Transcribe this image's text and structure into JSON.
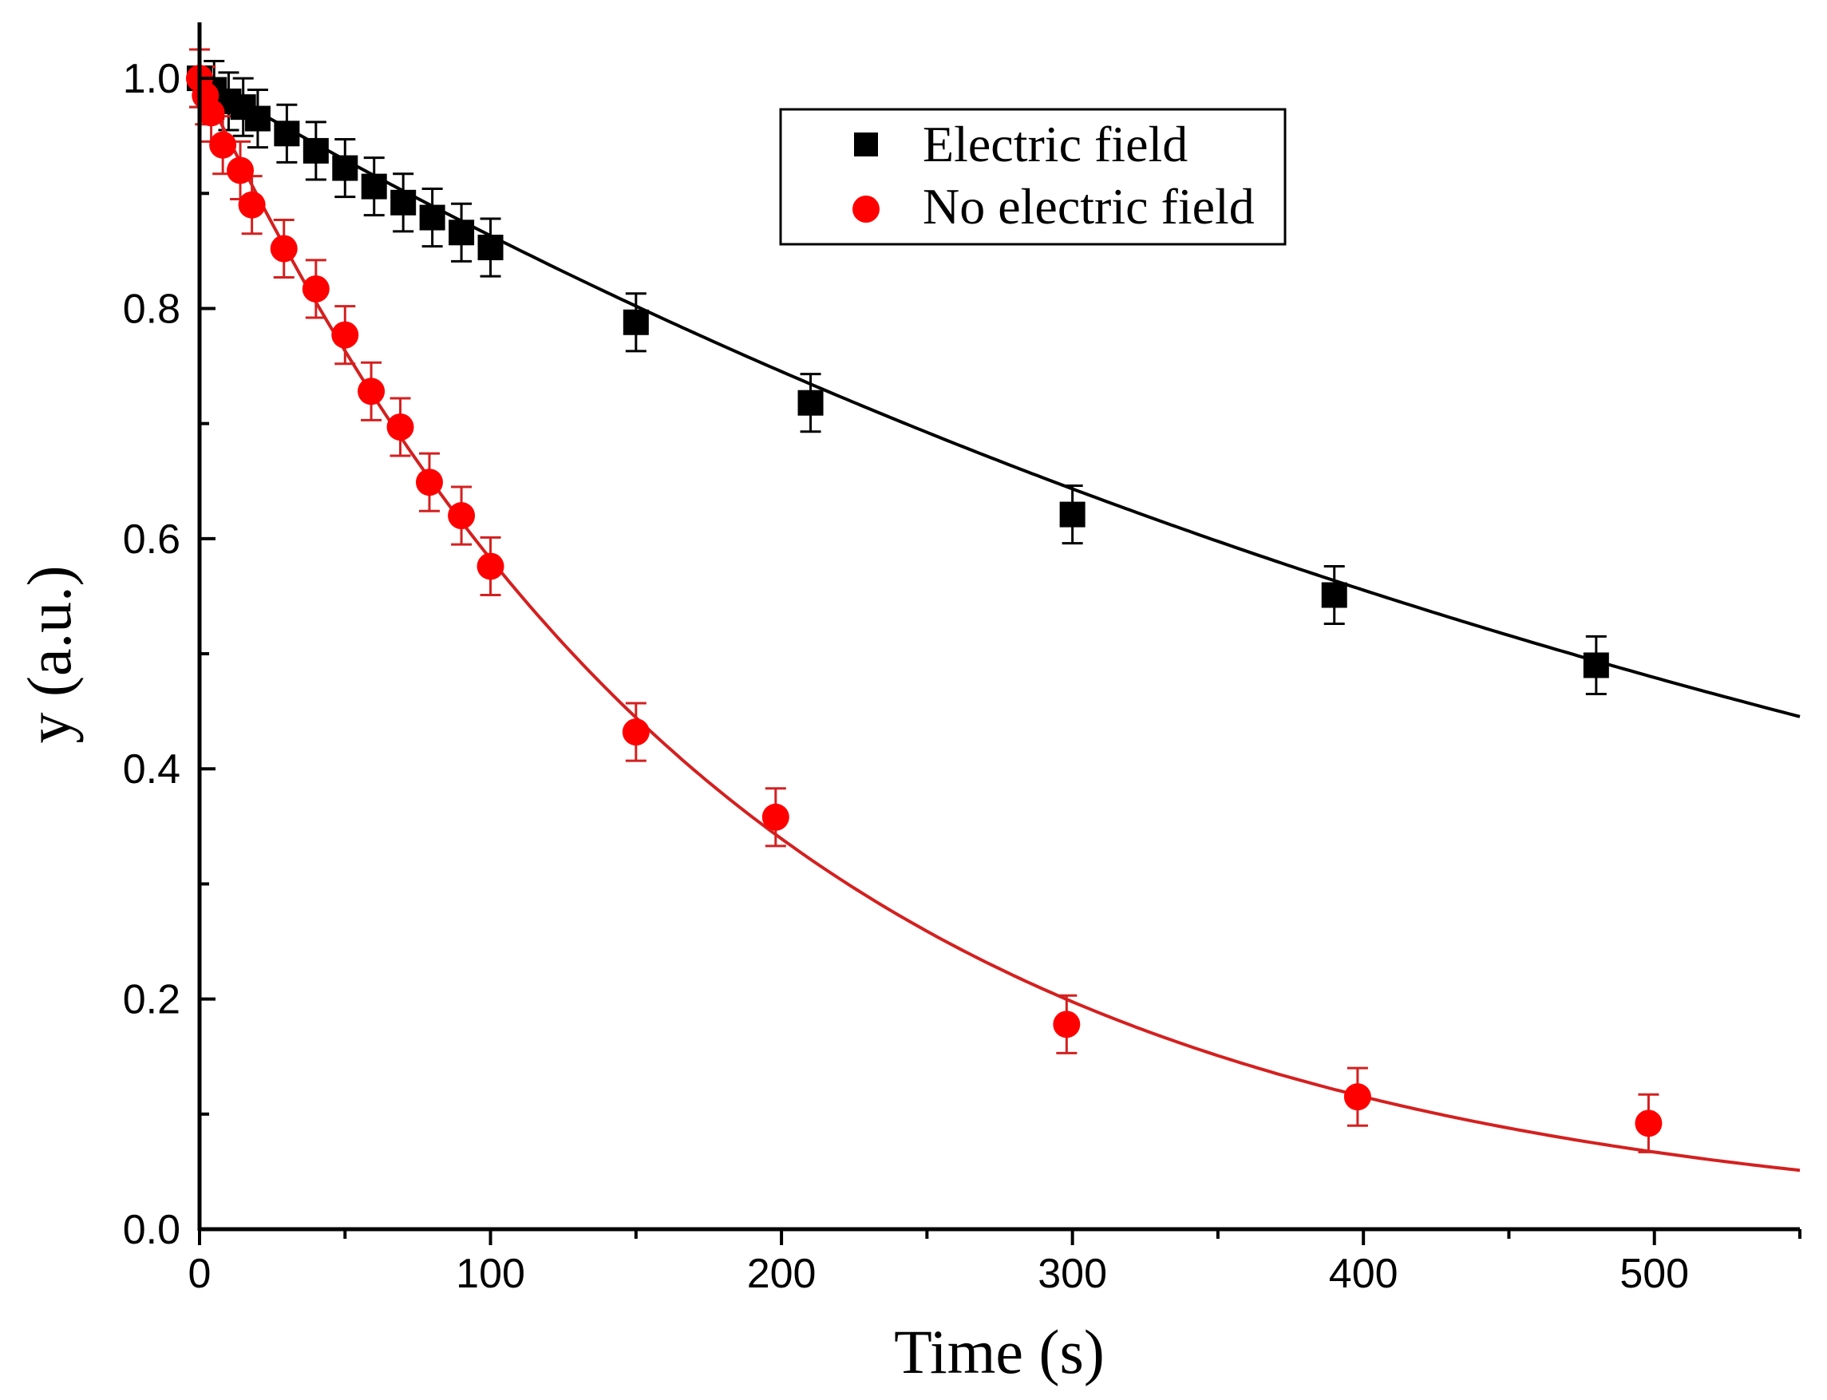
{
  "chart_data": {
    "type": "scatter",
    "title": "",
    "xlabel": "Time (s)",
    "ylabel": "y (a.u.)",
    "xlim": [
      0,
      550
    ],
    "ylim": [
      0,
      1.05
    ],
    "xticks": [
      0,
      100,
      200,
      300,
      400,
      500
    ],
    "xtick_labels": [
      "0",
      "100",
      "200",
      "300",
      "400",
      "500"
    ],
    "yticks": [
      0.0,
      0.2,
      0.4,
      0.6,
      0.8,
      1.0
    ],
    "ytick_labels": [
      "0.0",
      "0.2",
      "0.4",
      "0.6",
      "0.8",
      "1.0"
    ],
    "grid": false,
    "legend_position": "top-center",
    "series": [
      {
        "name": "Electric field",
        "marker": "square",
        "color": "#000000",
        "x": [
          0,
          5,
          10,
          15,
          20,
          30,
          40,
          50,
          60,
          70,
          80,
          90,
          100,
          150,
          210,
          300,
          390,
          480
        ],
        "y": [
          1.0,
          0.99,
          0.98,
          0.975,
          0.965,
          0.952,
          0.937,
          0.922,
          0.906,
          0.892,
          0.879,
          0.866,
          0.853,
          0.788,
          0.718,
          0.621,
          0.551,
          0.49
        ],
        "error": 0.025,
        "fit": {
          "model": "exponential",
          "amplitude": 1.0,
          "tau": 680
        }
      },
      {
        "name": "No electric field",
        "marker": "circle",
        "color": "#ff0000",
        "x": [
          0,
          2,
          4,
          8,
          14,
          18,
          29,
          40,
          50,
          59,
          69,
          79,
          90,
          100,
          150,
          198,
          298,
          398,
          498
        ],
        "y": [
          1.0,
          0.985,
          0.97,
          0.942,
          0.92,
          0.89,
          0.852,
          0.817,
          0.777,
          0.728,
          0.697,
          0.649,
          0.62,
          0.576,
          0.432,
          0.358,
          0.178,
          0.115,
          0.092
        ],
        "error": 0.025,
        "fit": {
          "model": "exponential",
          "amplitude": 1.0,
          "tau": 185
        }
      }
    ]
  }
}
